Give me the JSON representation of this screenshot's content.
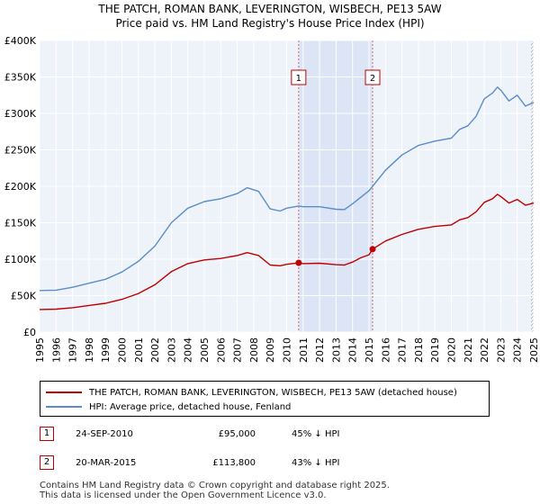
{
  "chart_data": {
    "type": "line",
    "title": "THE PATCH, ROMAN BANK, LEVERINGTON, WISBECH, PE13 5AW",
    "subtitle": "Price paid vs. HM Land Registry's House Price Index (HPI)",
    "xlabel": "",
    "ylabel": "",
    "xlim": [
      1995,
      2025
    ],
    "ylim": [
      0,
      400000
    ],
    "x_ticks": [
      "1995",
      "1996",
      "1997",
      "1998",
      "1999",
      "2000",
      "2001",
      "2002",
      "2003",
      "2004",
      "2005",
      "2006",
      "2007",
      "2008",
      "2009",
      "2010",
      "2011",
      "2012",
      "2013",
      "2014",
      "2015",
      "2016",
      "2017",
      "2018",
      "2019",
      "2020",
      "2021",
      "2022",
      "2023",
      "2024",
      "2025"
    ],
    "y_ticks": [
      {
        "value": 0,
        "label": "£0"
      },
      {
        "value": 50000,
        "label": "£50K"
      },
      {
        "value": 100000,
        "label": "£100K"
      },
      {
        "value": 150000,
        "label": "£150K"
      },
      {
        "value": 200000,
        "label": "£200K"
      },
      {
        "value": 250000,
        "label": "£250K"
      },
      {
        "value": 300000,
        "label": "£300K"
      },
      {
        "value": 350000,
        "label": "£350K"
      },
      {
        "value": 400000,
        "label": "£400K"
      }
    ],
    "grid": true,
    "shaded_range": [
      2010.73,
      2015.22
    ],
    "series": [
      {
        "name": "THE PATCH, ROMAN BANK, LEVERINGTON, WISBECH, PE13 5AW (detached house)",
        "color": "#c00000",
        "x": [
          1995,
          1996,
          1997,
          1998,
          1999,
          2000,
          2001,
          2002,
          2003,
          2004,
          2005,
          2006,
          2007,
          2007.6,
          2008.3,
          2009,
          2009.6,
          2010,
          2010.73,
          2011,
          2012,
          2013,
          2013.5,
          2014,
          2014.5,
          2015,
          2015.22,
          2016,
          2017,
          2018,
          2019,
          2020,
          2020.5,
          2021,
          2021.5,
          2022,
          2022.5,
          2022.8,
          2023,
          2023.5,
          2024,
          2024.5,
          2025
        ],
        "y": [
          31000,
          31500,
          33500,
          36500,
          39500,
          45000,
          53000,
          65000,
          83000,
          94000,
          99000,
          101000,
          105000,
          109000,
          105000,
          92000,
          91000,
          93000,
          95000,
          94000,
          94500,
          92500,
          92000,
          96000,
          102000,
          106000,
          113800,
          125000,
          134000,
          141000,
          145000,
          147000,
          154000,
          157000,
          165000,
          178000,
          183000,
          189000,
          186000,
          177000,
          182000,
          174000,
          177000
        ]
      },
      {
        "name": "HPI: Average price, detached house, Fenland",
        "color": "#5b8ec8",
        "x": [
          1995,
          1996,
          1997,
          1998,
          1999,
          2000,
          2001,
          2002,
          2003,
          2004,
          2005,
          2006,
          2007,
          2007.6,
          2008.3,
          2009,
          2009.6,
          2010,
          2010.73,
          2011,
          2012,
          2013,
          2013.5,
          2014,
          2014.5,
          2015,
          2015.22,
          2016,
          2017,
          2018,
          2019,
          2020,
          2020.5,
          2021,
          2021.5,
          2022,
          2022.5,
          2022.8,
          2023,
          2023.5,
          2024,
          2024.5,
          2025
        ],
        "y": [
          57000,
          57500,
          61500,
          67000,
          72500,
          82500,
          97000,
          118000,
          150000,
          170000,
          179000,
          183000,
          190000,
          198000,
          193000,
          169000,
          166000,
          170000,
          173000,
          172000,
          172000,
          168500,
          168000,
          176000,
          185000,
          194000,
          200000,
          222000,
          243000,
          256000,
          262000,
          266000,
          278000,
          283000,
          296000,
          320000,
          328000,
          336000,
          332000,
          317000,
          325000,
          310000,
          315000
        ]
      }
    ],
    "transactions": [
      {
        "id": "1",
        "x": 2010.73,
        "price": 95000
      },
      {
        "id": "2",
        "x": 2015.22,
        "price": 113800
      }
    ]
  },
  "legend": {
    "items": [
      {
        "label": "THE PATCH, ROMAN BANK, LEVERINGTON, WISBECH, PE13 5AW (detached house)",
        "color": "#c00000"
      },
      {
        "label": "HPI: Average price, detached house, Fenland",
        "color": "#5b8ec8"
      }
    ]
  },
  "transactions_table": [
    {
      "id": "1",
      "date": "24-SEP-2010",
      "price": "£95,000",
      "hpi": "45% ↓ HPI"
    },
    {
      "id": "2",
      "date": "20-MAR-2015",
      "price": "£113,800",
      "hpi": "43% ↓ HPI"
    }
  ],
  "footer": {
    "line1": "Contains HM Land Registry data © Crown copyright and database right 2025.",
    "line2": "This data is licensed under the Open Government Licence v3.0."
  }
}
